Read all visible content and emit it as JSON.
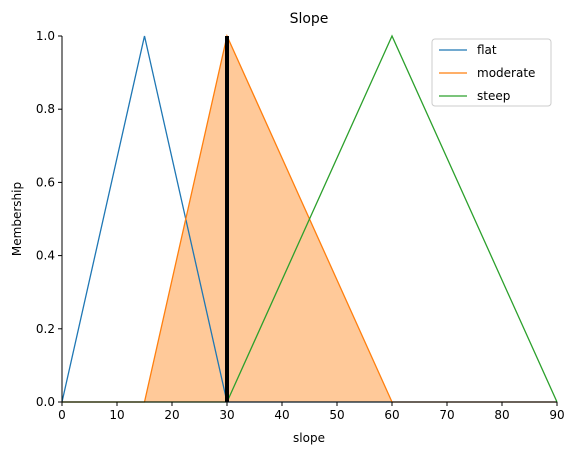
{
  "chart_data": {
    "type": "line",
    "title": "Slope",
    "xlabel": "slope",
    "ylabel": "Membership",
    "xlim": [
      0,
      90
    ],
    "ylim": [
      0,
      1.0
    ],
    "x_ticks": [
      "0",
      "10",
      "20",
      "30",
      "40",
      "50",
      "60",
      "70",
      "80",
      "90"
    ],
    "y_ticks": [
      "0.0",
      "0.2",
      "0.4",
      "0.6",
      "0.8",
      "1.0"
    ],
    "grid": false,
    "legend_position": "top-right",
    "series": [
      {
        "name": "flat",
        "color": "#1f77b4",
        "points": [
          [
            0,
            0
          ],
          [
            15,
            1
          ],
          [
            30,
            0
          ],
          [
            90,
            0
          ]
        ]
      },
      {
        "name": "moderate",
        "color": "#ff7f0e",
        "points": [
          [
            0,
            0
          ],
          [
            15,
            0
          ],
          [
            30,
            1
          ],
          [
            60,
            0
          ],
          [
            90,
            0
          ]
        ]
      },
      {
        "name": "steep",
        "color": "#2ca02c",
        "points": [
          [
            0,
            0
          ],
          [
            30,
            0
          ],
          [
            60,
            1
          ],
          [
            90,
            0
          ]
        ]
      }
    ],
    "filled_area": {
      "series": "moderate",
      "color": "#ffc999",
      "points": [
        [
          15,
          0
        ],
        [
          30,
          1
        ],
        [
          60,
          0
        ]
      ]
    },
    "vertical_marker": {
      "x": 30,
      "color": "#000000"
    }
  }
}
